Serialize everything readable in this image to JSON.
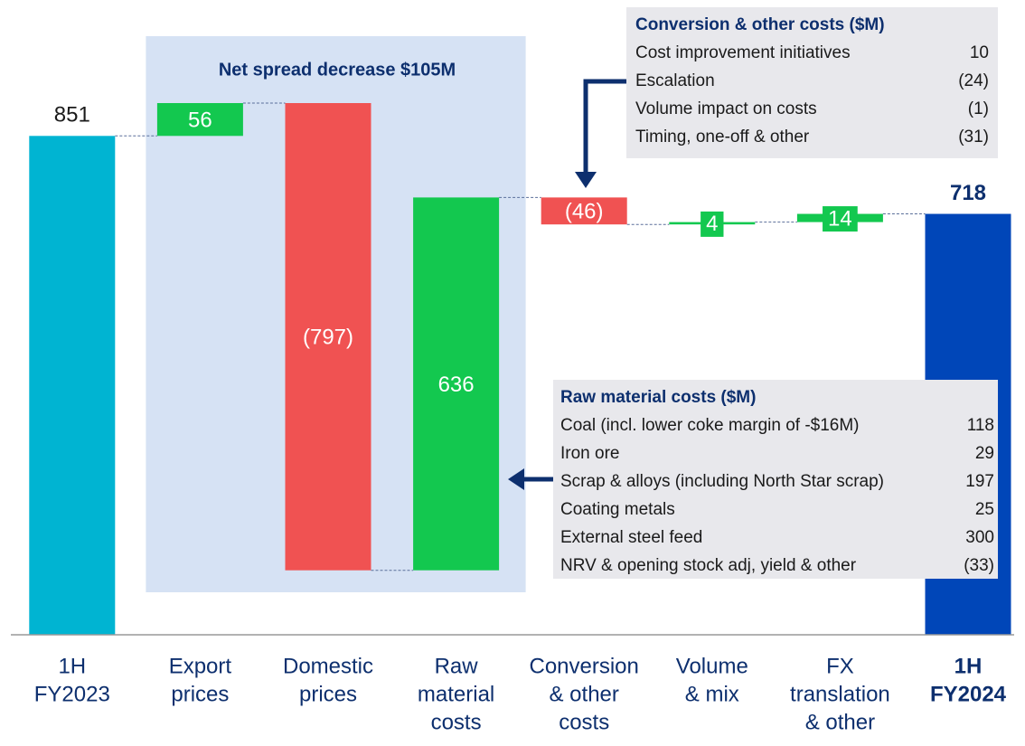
{
  "chart_data": {
    "type": "waterfall",
    "categories": [
      [
        "1H",
        "FY2023"
      ],
      [
        "Export",
        "prices"
      ],
      [
        "Domestic",
        "prices"
      ],
      [
        "Raw",
        "material",
        "costs"
      ],
      [
        "Conversion",
        "& other",
        "costs"
      ],
      [
        "Volume",
        "& mix"
      ],
      [
        "FX",
        "translation",
        "& other"
      ],
      [
        "1H",
        "FY2024"
      ]
    ],
    "measure": [
      "total",
      "relative",
      "relative",
      "relative",
      "relative",
      "relative",
      "relative",
      "total"
    ],
    "values": [
      851,
      56,
      -797,
      636,
      -46,
      4,
      14,
      718
    ],
    "value_labels": [
      "851",
      "56",
      "(797)",
      "636",
      "(46)",
      "4",
      "14",
      "718"
    ],
    "colors": [
      "#00b4d2",
      "#13c84f",
      "#f05252",
      "#13c84f",
      "#f05252",
      "#13c84f",
      "#13c84f",
      "#0046b8"
    ],
    "highlight": {
      "text": "Net spread decrease $105M",
      "from": 1,
      "to": 3
    },
    "annotations": [
      {
        "title": "Conversion & other costs ($M)",
        "rows": [
          [
            "Cost improvement initiatives",
            "10"
          ],
          [
            "Escalation",
            "(24)"
          ],
          [
            "Volume impact on costs",
            "(1)"
          ],
          [
            "Timing, one-off & other",
            "(31)"
          ]
        ]
      },
      {
        "title": "Raw material costs ($M)",
        "rows": [
          [
            "Coal (incl. lower coke margin of -$16M)",
            "118"
          ],
          [
            "Iron ore",
            "29"
          ],
          [
            "Scrap & alloys (including North Star scrap)",
            "197"
          ],
          [
            "Coating metals",
            "25"
          ],
          [
            "External steel feed",
            "300"
          ],
          [
            "NRV & opening stock adj, yield & other",
            "(33)"
          ]
        ]
      }
    ]
  }
}
